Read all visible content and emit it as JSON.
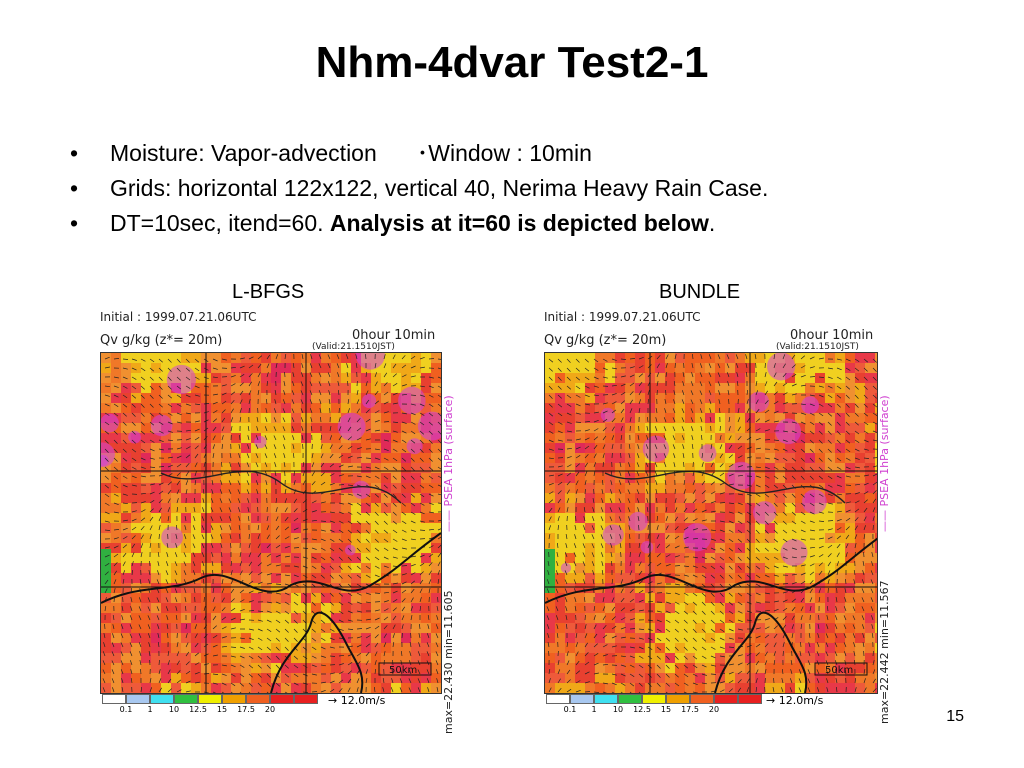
{
  "title": "Nhm-4dvar Test2-1",
  "bullets": [
    {
      "marker": "•",
      "text": "Moisture: Vapor-advection",
      "extra": "･Window : 10min"
    },
    {
      "marker": "•",
      "text": "Grids: horizontal 122x122,  vertical 40, Nerima Heavy Rain Case."
    },
    {
      "marker": "•",
      "text": "DT=10sec, itend=60. ",
      "bold": "Analysis at it=60 is depicted below",
      "tail": "."
    }
  ],
  "panels": [
    {
      "label": "L-BFGS",
      "initial": "Initial : 1999.07.21.06UTC",
      "field": "Qv g/kg (z*= 20m)",
      "time": "0hour 10min",
      "valid": "(Valid:21.1510JST)",
      "psea": "—— PSEA 1hPa (surface)",
      "stats": "max=22.430  min=11.605",
      "scale_km": "50km"
    },
    {
      "label": "BUNDLE",
      "initial": "Initial : 1999.07.21.06UTC",
      "field": "Qv g/kg (z*= 20m)",
      "time": "0hour 10min",
      "valid": "(Valid:21.1510JST)",
      "psea": "—— PSEA 1hPa (surface)",
      "stats": "max=22.442  min=11.567",
      "scale_km": "50km"
    }
  ],
  "legend": {
    "ticks": [
      "0.1",
      "1",
      "10",
      "12.5",
      "15",
      "17.5",
      "20"
    ],
    "colors": [
      "#ffffff",
      "#a8c8f0",
      "#40e0f0",
      "#30c040",
      "#f0f000",
      "#f0a000",
      "#f06020",
      "#e82020",
      "#e82020"
    ],
    "vector_label": "→ 12.0m/s"
  },
  "slide_number": "15"
}
